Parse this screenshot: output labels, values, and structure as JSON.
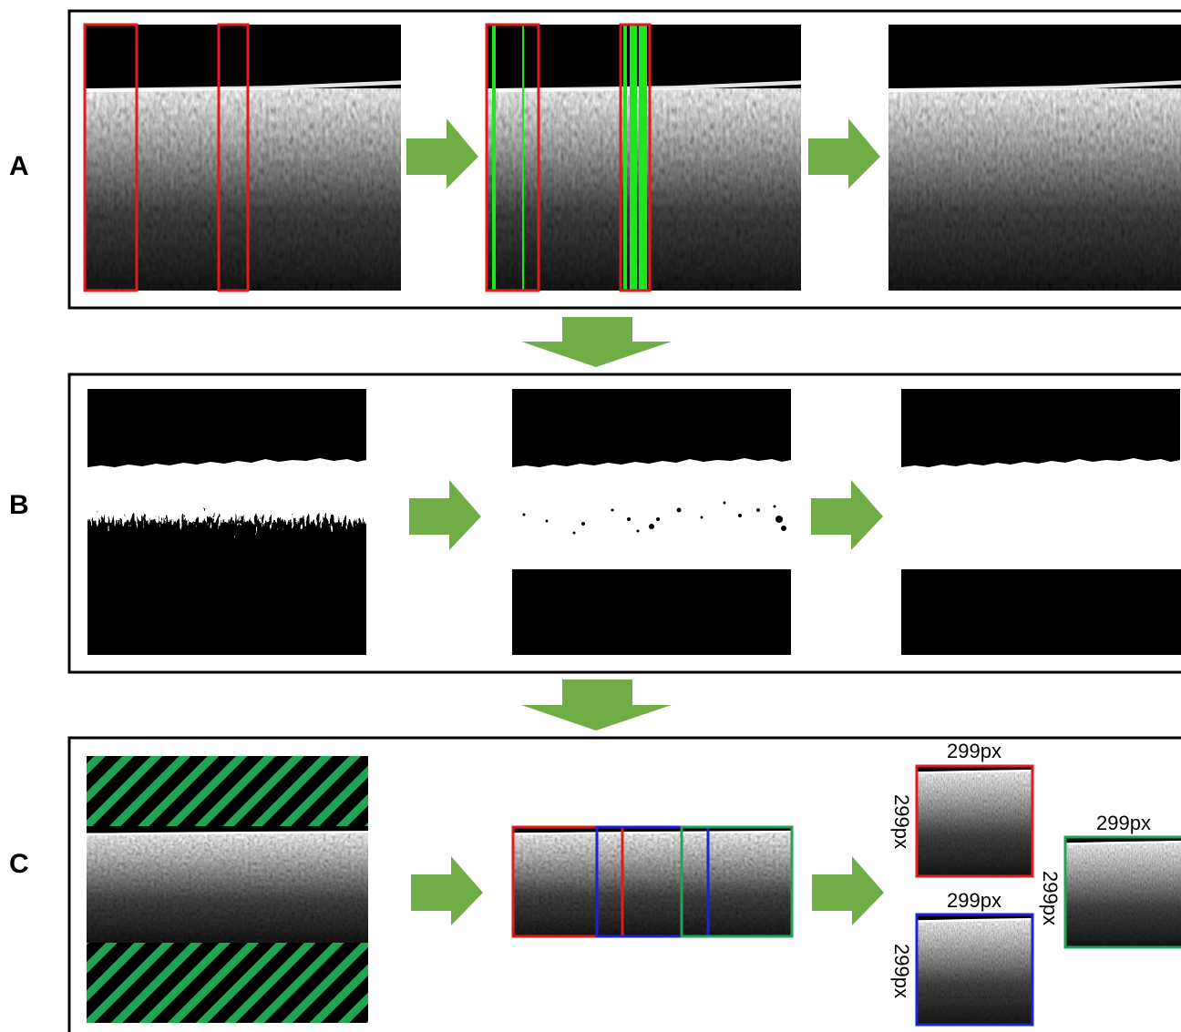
{
  "panels": [
    {
      "label": "A"
    },
    {
      "label": "B"
    },
    {
      "label": "C"
    }
  ],
  "crops": [
    {
      "width_label": "299px",
      "height_label": "299px"
    },
    {
      "width_label": "299px",
      "height_label": "299px"
    },
    {
      "width_label": "299px",
      "height_label": "299px"
    }
  ]
}
